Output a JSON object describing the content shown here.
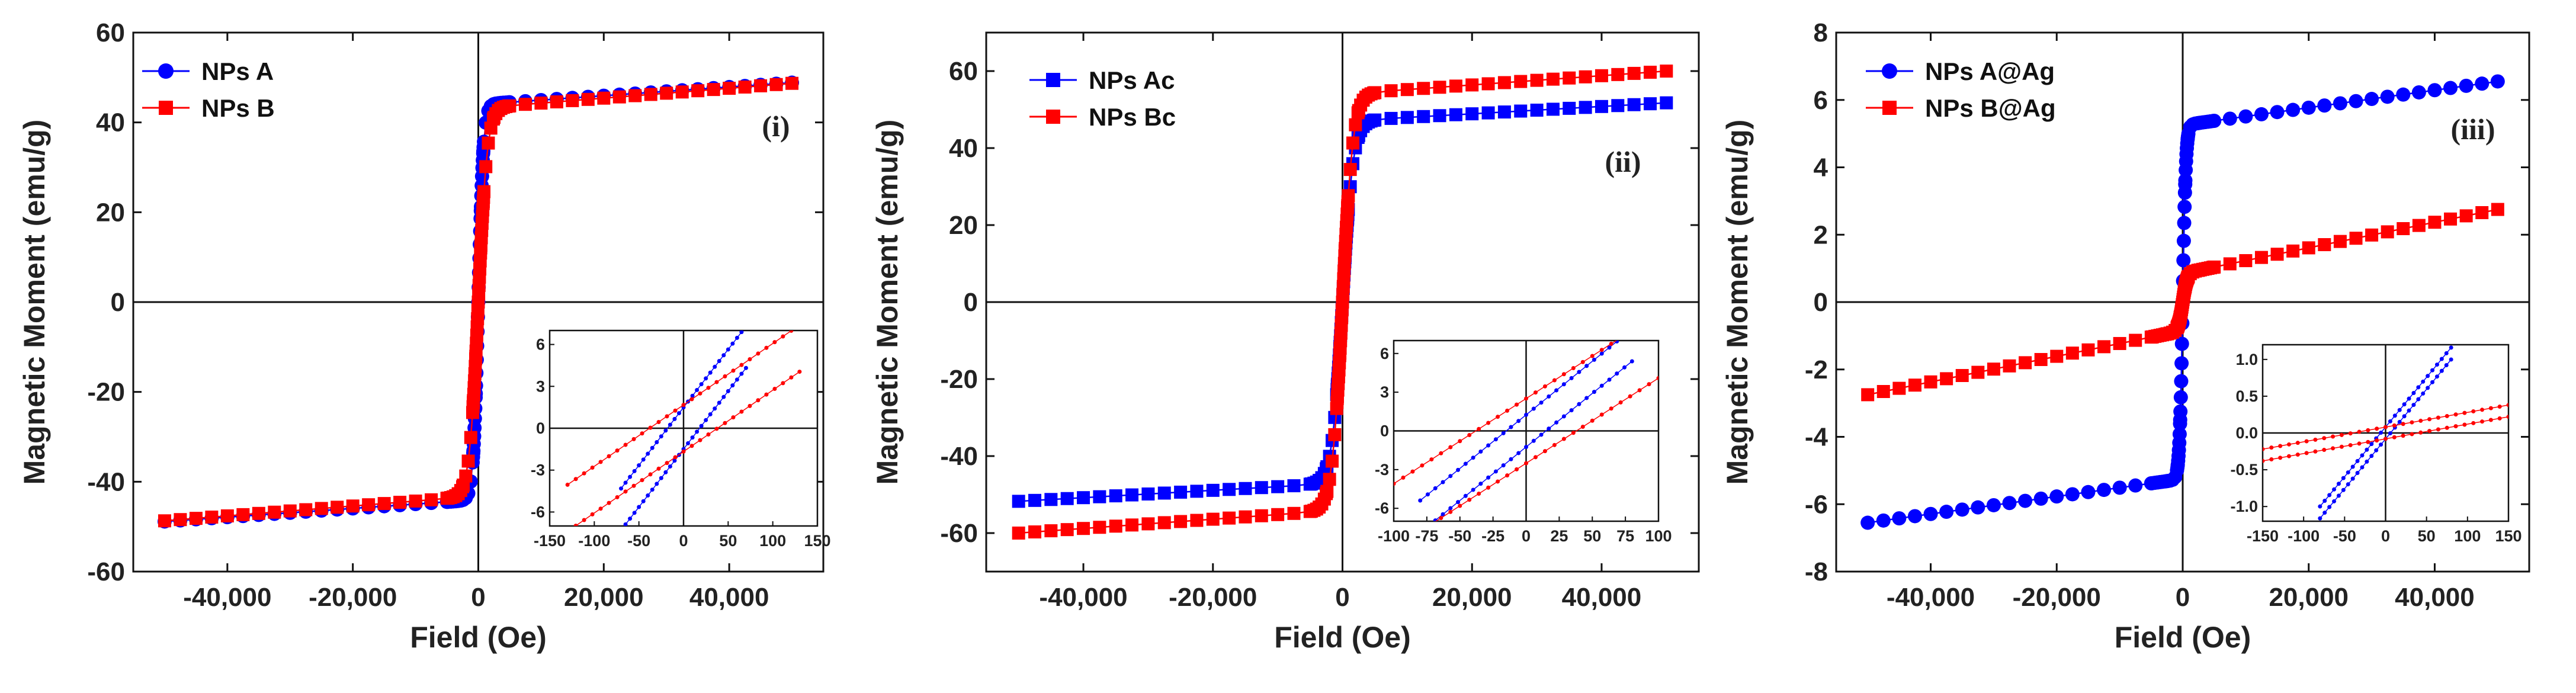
{
  "chart_data": [
    {
      "id": "i",
      "type": "scatter",
      "panel_label": "(i)",
      "xlabel": "Field (Oe)",
      "ylabel": "Magnetic Moment (emu/g)",
      "xlim": [
        -55000,
        55000
      ],
      "ylim": [
        -60,
        60
      ],
      "xticks": [
        -40000,
        -20000,
        0,
        20000,
        40000
      ],
      "xtick_labels": [
        "-40,000",
        "-20,000",
        "0",
        "20,000",
        "40,000"
      ],
      "yticks": [
        -60,
        -40,
        -20,
        0,
        20,
        40,
        60
      ],
      "ytick_labels": [
        "-60",
        "-40",
        "-20",
        "0",
        "20",
        "40",
        "60"
      ],
      "legend_position": "top-left",
      "series": [
        {
          "name": "NPs A",
          "color": "#0000ff",
          "marker": "circle",
          "Ms": 44.0,
          "h0": 800,
          "slope": 9.7e-05
        },
        {
          "name": "NPs B",
          "color": "#ff0000",
          "marker": "square",
          "Ms": 43.2,
          "h0": 1400,
          "slope": 0.00011
        }
      ],
      "inset": {
        "xlim": [
          -150,
          150
        ],
        "ylim": [
          -7,
          7
        ],
        "xticks": [
          -150,
          -100,
          -50,
          0,
          50,
          100,
          150
        ],
        "xtick_labels": [
          "-150",
          "-100",
          "-50",
          "0",
          "50",
          "100",
          "150"
        ],
        "yticks": [
          -6,
          -3,
          0,
          3,
          6
        ],
        "ytick_labels": [
          "-6",
          "-3",
          "0",
          "3",
          "6"
        ],
        "series": [
          {
            "name": "NPs A",
            "color": "#0000ff",
            "slope": 0.083,
            "coercivity": 18,
            "xmax": 70
          },
          {
            "name": "NPs B",
            "color": "#ff0000",
            "slope": 0.044,
            "coercivity": 38,
            "xmax": 130
          }
        ]
      }
    },
    {
      "id": "ii",
      "type": "scatter",
      "panel_label": "(ii)",
      "xlabel": "Field (Oe)",
      "ylabel": "Magnetic Moment (emu/g)",
      "xlim": [
        -55000,
        55000
      ],
      "ylim": [
        -70,
        70
      ],
      "xticks": [
        -40000,
        -20000,
        0,
        20000,
        40000
      ],
      "xtick_labels": [
        "-40,000",
        "-20,000",
        "0",
        "20,000",
        "40,000"
      ],
      "yticks": [
        -60,
        -40,
        -20,
        0,
        20,
        40,
        60
      ],
      "ytick_labels": [
        "-60",
        "-40",
        "-20",
        "0",
        "20",
        "40",
        "60"
      ],
      "legend_position": "top-left",
      "series": [
        {
          "name": "NPs Ac",
          "color": "#0000ff",
          "marker": "square",
          "Ms": 47.0,
          "h0": 1600,
          "slope": 9.5e-05
        },
        {
          "name": "NPs Bc",
          "color": "#ff0000",
          "marker": "square",
          "Ms": 54.0,
          "h0": 1600,
          "slope": 0.00012
        }
      ],
      "inset": {
        "xlim": [
          -100,
          100
        ],
        "ylim": [
          -7,
          7
        ],
        "xticks": [
          -100,
          -75,
          -50,
          -25,
          0,
          25,
          50,
          75,
          100
        ],
        "xtick_labels": [
          "-100",
          "-75",
          "-50",
          "-25",
          "0",
          "25",
          "50",
          "75",
          "100"
        ],
        "yticks": [
          -6,
          -3,
          0,
          3,
          6
        ],
        "ytick_labels": [
          "-6",
          "-3",
          "0",
          "3",
          "6"
        ],
        "series": [
          {
            "name": "NPs Ac",
            "color": "#0000ff",
            "slope": 0.083,
            "coercivity": 15,
            "xmax": 80
          },
          {
            "name": "NPs Bc",
            "color": "#ff0000",
            "slope": 0.066,
            "coercivity": 38,
            "xmax": 100
          }
        ]
      }
    },
    {
      "id": "iii",
      "type": "scatter",
      "panel_label": "(iii)",
      "xlabel": "Field (Oe)",
      "ylabel": "Magnetic Moment (emu/g)",
      "xlim": [
        -55000,
        55000
      ],
      "ylim": [
        -8,
        8
      ],
      "xticks": [
        -40000,
        -20000,
        0,
        20000,
        40000
      ],
      "xtick_labels": [
        "-40,000",
        "-20,000",
        "0",
        "20,000",
        "40,000"
      ],
      "yticks": [
        -8,
        -6,
        -4,
        -2,
        0,
        2,
        4,
        6,
        8
      ],
      "ytick_labels": [
        "-8",
        "-6",
        "-4",
        "-2",
        "0",
        "2",
        "4",
        "6",
        "8"
      ],
      "legend_position": "top-left",
      "series": [
        {
          "name": "NPs A@Ag",
          "color": "#0000ff",
          "marker": "circle",
          "Ms": 5.25,
          "h0": 500,
          "slope": 2.6e-05
        },
        {
          "name": "NPs B@Ag",
          "color": "#ff0000",
          "marker": "square",
          "Ms": 0.85,
          "h0": 700,
          "slope": 3.8e-05
        }
      ],
      "inset": {
        "xlim": [
          -150,
          150
        ],
        "ylim": [
          -1.2,
          1.2
        ],
        "xticks": [
          -150,
          -100,
          -50,
          0,
          50,
          100,
          150
        ],
        "xtick_labels": [
          "-150",
          "-100",
          "-50",
          "0",
          "50",
          "100",
          "150"
        ],
        "yticks": [
          -1.0,
          -0.5,
          0.0,
          0.5,
          1.0
        ],
        "ytick_labels": [
          "-1.0",
          "-0.5",
          "0.0",
          "0.5",
          "1.0"
        ],
        "series": [
          {
            "name": "NPs A@Ag",
            "color": "#0000ff",
            "slope": 0.0135,
            "coercivity": 6,
            "xmax": 80
          },
          {
            "name": "NPs B@Ag",
            "color": "#ff0000",
            "slope": 0.002,
            "coercivity": 40,
            "xmax": 150
          }
        ]
      }
    }
  ]
}
